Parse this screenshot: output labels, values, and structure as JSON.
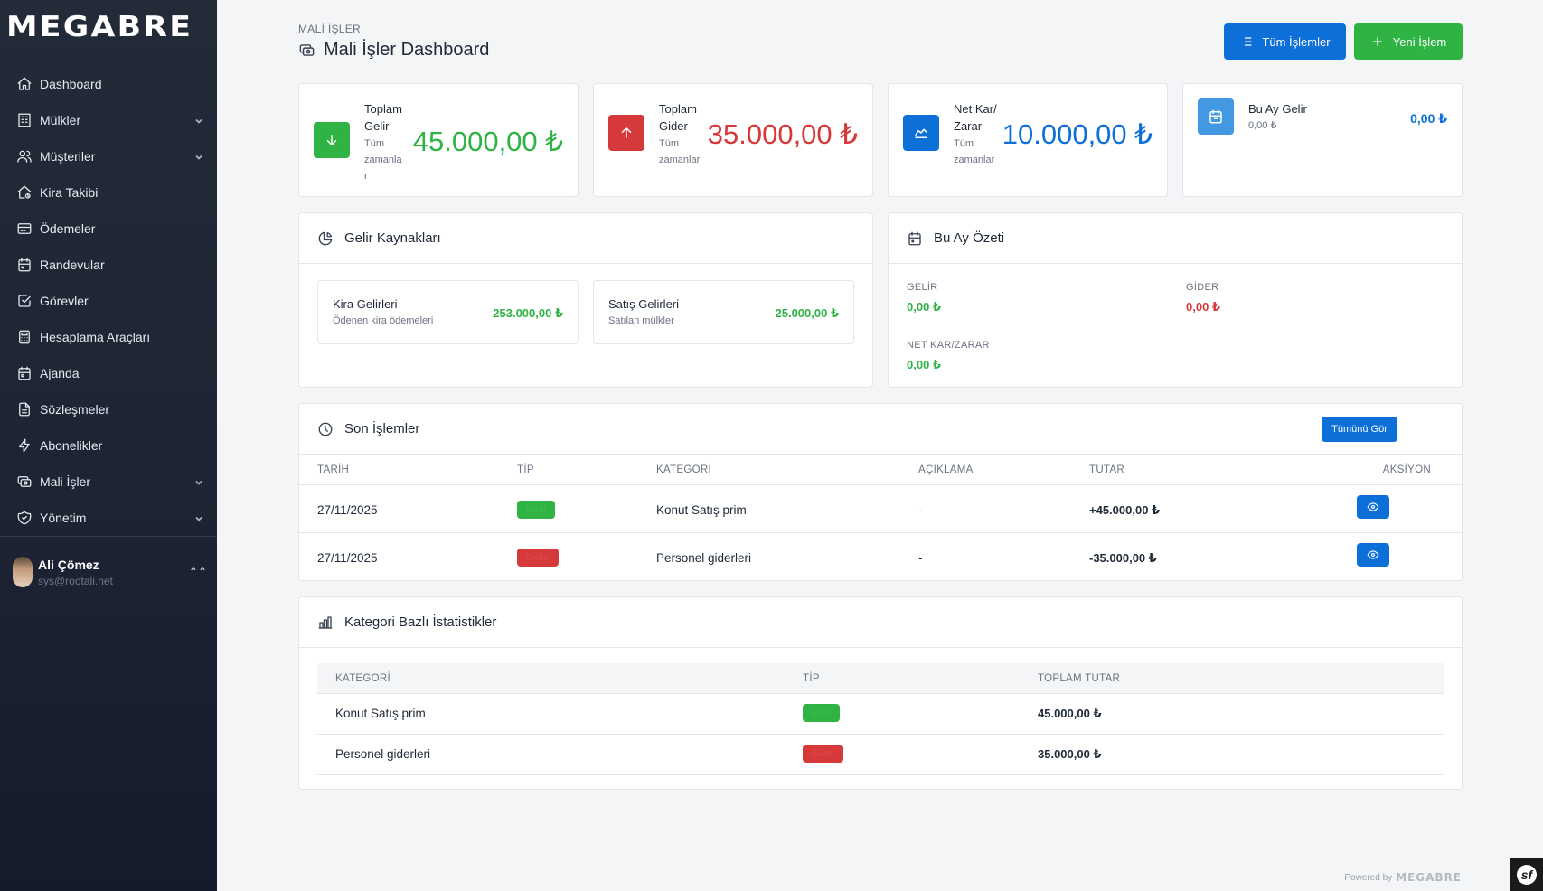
{
  "app": {
    "logo": "MEGABRE"
  },
  "sidebar": {
    "items": [
      {
        "label": "Dashboard",
        "icon": "home-icon",
        "expandable": false
      },
      {
        "label": "Mülkler",
        "icon": "building-icon",
        "expandable": true
      },
      {
        "label": "Müşteriler",
        "icon": "users-icon",
        "expandable": true
      },
      {
        "label": "Kira Takibi",
        "icon": "house-rent-icon",
        "expandable": false
      },
      {
        "label": "Ödemeler",
        "icon": "credit-card-icon",
        "expandable": false
      },
      {
        "label": "Randevular",
        "icon": "calendar-icon",
        "expandable": false
      },
      {
        "label": "Görevler",
        "icon": "checkbox-icon",
        "expandable": false
      },
      {
        "label": "Hesaplama Araçları",
        "icon": "calculator-icon",
        "expandable": false
      },
      {
        "label": "Ajanda",
        "icon": "calendar-event-icon",
        "expandable": false
      },
      {
        "label": "Sözleşmeler",
        "icon": "file-text-icon",
        "expandable": false
      },
      {
        "label": "Abonelikler",
        "icon": "bolt-icon",
        "expandable": false
      },
      {
        "label": "Mali İşler",
        "icon": "cash-icon",
        "expandable": true
      },
      {
        "label": "Yönetim",
        "icon": "shield-icon",
        "expandable": true
      }
    ],
    "user": {
      "name": "Ali Çömez",
      "email": "sys@rootali.net"
    }
  },
  "header": {
    "eyebrow": "MALİ İŞLER",
    "title": "Mali İşler Dashboard",
    "all_transactions_label": "Tüm İşlemler",
    "new_transaction_label": "Yeni İşlem"
  },
  "stats": {
    "total_income": {
      "label1": "Toplam",
      "label2": "Gelir",
      "sub1": "Tüm",
      "sub2": "zamanla",
      "sub3": "r",
      "value": "45.000,00 ₺"
    },
    "total_expense": {
      "label1": "Toplam",
      "label2": "Gider",
      "sub1": "Tüm",
      "sub2": "zamanlar",
      "value": "35.000,00 ₺"
    },
    "net_profit": {
      "label1": "Net Kar/",
      "label2": "Zarar",
      "sub1": "Tüm",
      "sub2": "zamanlar",
      "value": "10.000,00 ₺"
    },
    "month_income": {
      "label": "Bu Ay Gelir",
      "sub": "0,00 ₺",
      "value": "0,00 ₺"
    }
  },
  "income_sources": {
    "title": "Gelir Kaynakları",
    "items": [
      {
        "title": "Kira Gelirleri",
        "subtitle": "Ödenen kira ödemeleri",
        "value": "253.000,00 ₺"
      },
      {
        "title": "Satış Gelirleri",
        "subtitle": "Satılan mülkler",
        "value": "25.000,00 ₺"
      }
    ]
  },
  "month_summary": {
    "title": "Bu Ay Özeti",
    "income_label": "GELİR",
    "income_value": "0,00 ₺",
    "expense_label": "GİDER",
    "expense_value": "0,00 ₺",
    "net_label": "NET KAR/ZARAR",
    "net_value": "0,00 ₺"
  },
  "recent": {
    "title": "Son İşlemler",
    "view_all_label": "Tümünü Gör",
    "columns": [
      "TARİH",
      "TİP",
      "KATEGORİ",
      "AÇIKLAMA",
      "TUTAR",
      "AKSİYON"
    ],
    "rows": [
      {
        "date": "27/11/2025",
        "type": "Gelir",
        "category": "Konut Satış prim",
        "description": "-",
        "amount": "+45.000,00 ₺"
      },
      {
        "date": "27/11/2025",
        "type": "Gider",
        "category": "Personel giderleri",
        "description": "-",
        "amount": "-35.000,00 ₺"
      }
    ]
  },
  "category_stats": {
    "title": "Kategori Bazlı İstatistikler",
    "columns": [
      "KATEGORİ",
      "TİP",
      "TOPLAM TUTAR"
    ],
    "rows": [
      {
        "category": "Konut Satış prim",
        "type": "Gelir",
        "total": "45.000,00 ₺"
      },
      {
        "category": "Personel giderleri",
        "type": "Gider",
        "total": "35.000,00 ₺"
      }
    ]
  },
  "footer": {
    "powered_by": "Powered by",
    "brand": "MEGABRE"
  },
  "colors": {
    "primary": "#0d6fd8",
    "success": "#2fb344",
    "danger": "#d63939",
    "sidebar": "#1e2433"
  }
}
